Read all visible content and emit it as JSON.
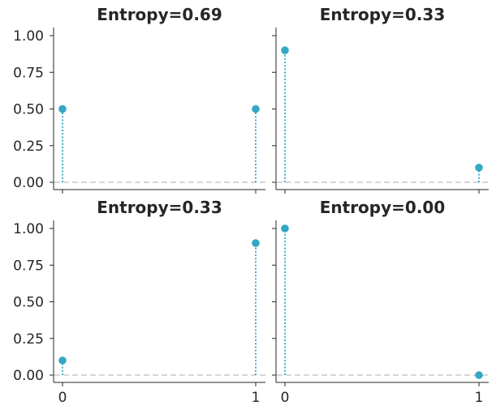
{
  "colors": {
    "marker": "#32a8c3",
    "stem": "#32a8c3",
    "baseline": "#c8c8c8"
  },
  "chart_data": {
    "type": "stem",
    "layout": "2x2 grid, shared x and y axes",
    "xticks": [
      "0",
      "1"
    ],
    "yticks": [
      "0.00",
      "0.25",
      "0.50",
      "0.75",
      "1.00"
    ],
    "ylim": [
      -0.05,
      1.05
    ],
    "xlim": [
      -0.05,
      1.05
    ],
    "grid": false,
    "panels": [
      {
        "title": "Entropy=0.69",
        "x": [
          0,
          1
        ],
        "values": [
          0.5,
          0.5
        ]
      },
      {
        "title": "Entropy=0.33",
        "x": [
          0,
          1
        ],
        "values": [
          0.9,
          0.1
        ]
      },
      {
        "title": "Entropy=0.33",
        "x": [
          0,
          1
        ],
        "values": [
          0.1,
          0.9
        ]
      },
      {
        "title": "Entropy=0.00",
        "x": [
          0,
          1
        ],
        "values": [
          1.0,
          0.0
        ]
      }
    ]
  }
}
